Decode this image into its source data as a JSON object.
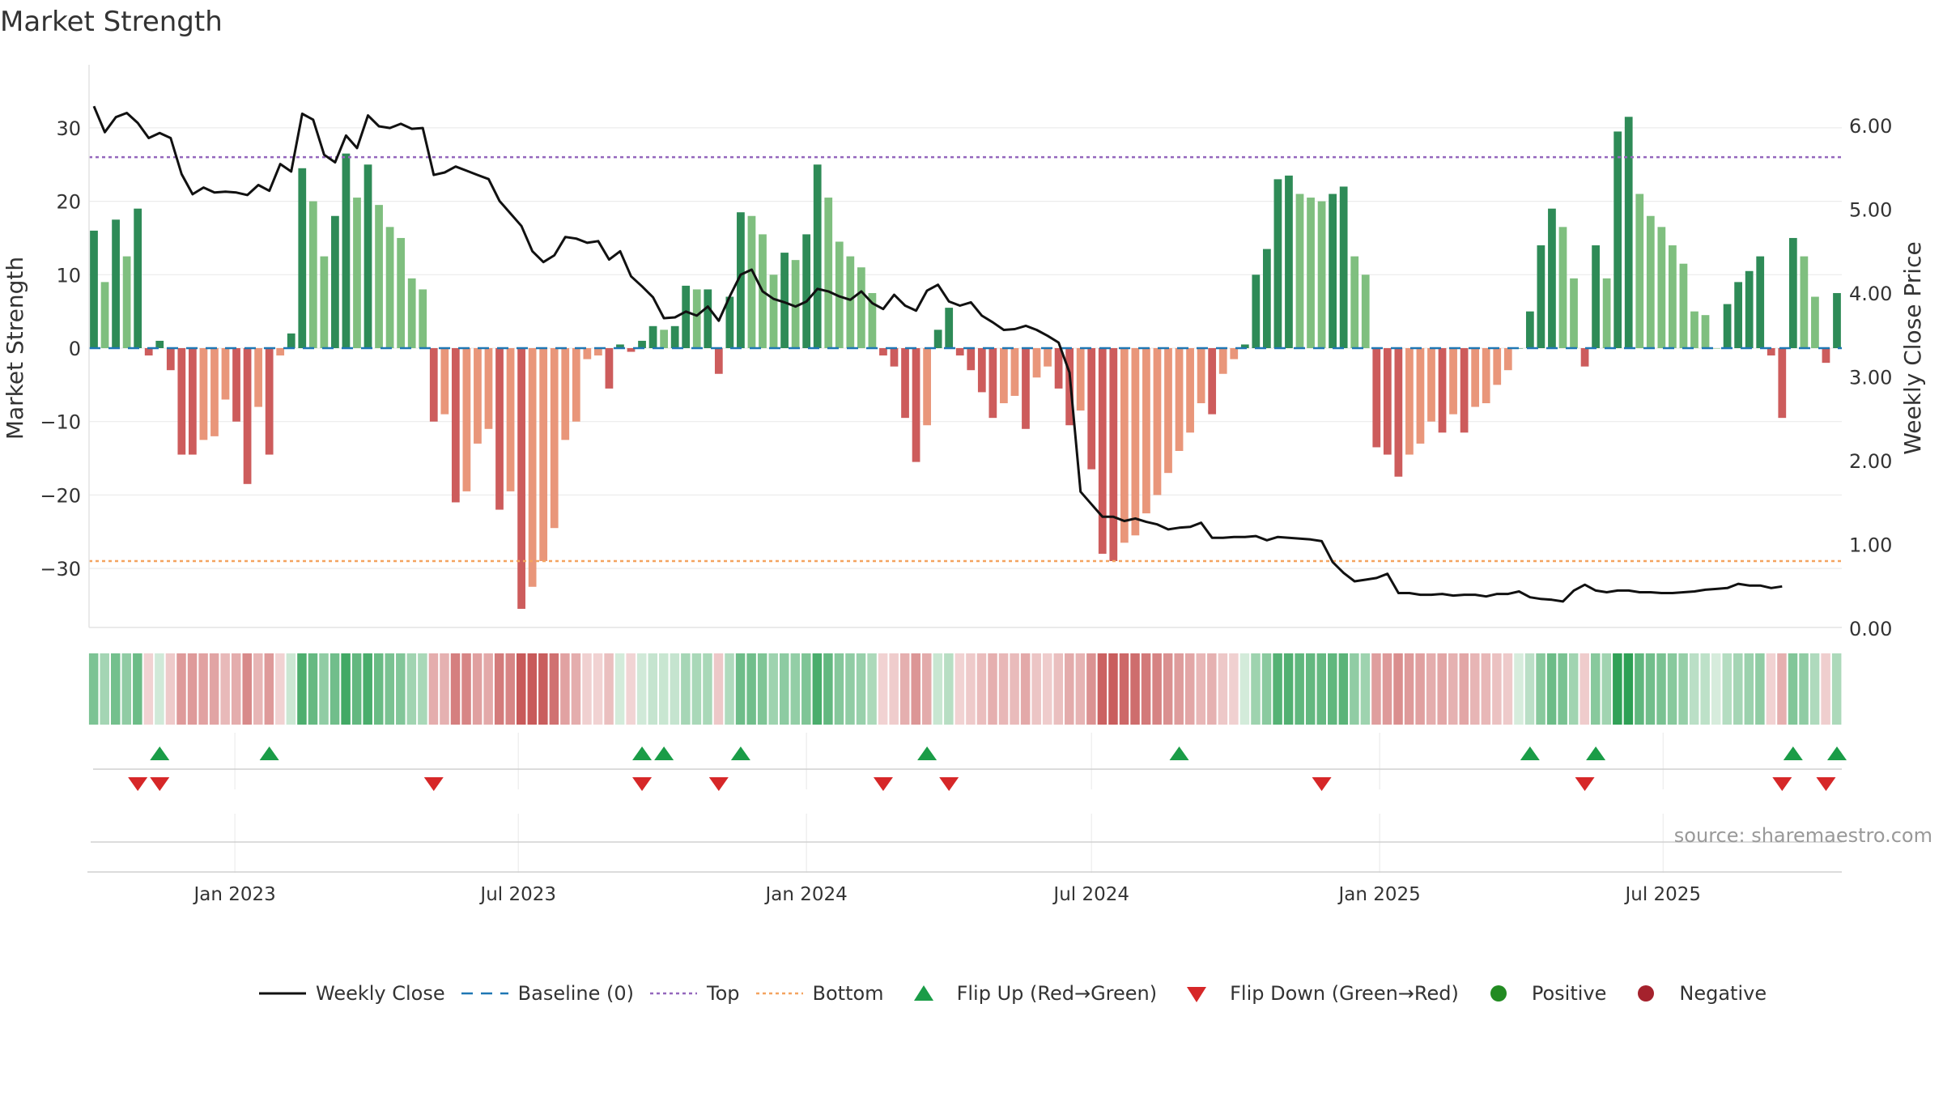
{
  "chart_data": {
    "type": "bar",
    "title": "Market Strength",
    "ylabel_left": "Market Strength",
    "ylabel_right": "Weekly Close Price",
    "ylim_left": [
      -38,
      38
    ],
    "ylim_right": [
      0,
      6.4
    ],
    "yticks_left": [
      "30",
      "20",
      "10",
      "0",
      "−10",
      "−20",
      "−30"
    ],
    "yticks_right": [
      "6.00",
      "5.00",
      "4.00",
      "3.00",
      "2.00",
      "1.00",
      "0.00"
    ],
    "top_line": 26,
    "bottom_line": -29,
    "x_start": "2022-10-03",
    "x_end": "2025-10-20",
    "x_ticks": [
      "Jan 2023",
      "Jul 2023",
      "Jan 2024",
      "Jul 2024",
      "Jan 2025",
      "Jul 2025"
    ],
    "x_tick_dates": [
      "2023-01-01",
      "2023-07-01",
      "2024-01-01",
      "2024-07-01",
      "2025-01-01",
      "2025-07-01"
    ],
    "strength": [
      16,
      9,
      17.5,
      12.5,
      19,
      -1,
      1,
      -3,
      -14.5,
      -14.5,
      -12.5,
      -12,
      -7,
      -10,
      -18.5,
      -8,
      -14.5,
      -1,
      2,
      24.5,
      20,
      12.5,
      18,
      26.5,
      20.5,
      25,
      19.5,
      16.5,
      15,
      9.5,
      8,
      -10,
      -9,
      -21,
      -19.5,
      -13,
      -11,
      -22,
      -19.5,
      -35.5,
      -32.5,
      -29,
      -24.5,
      -12.5,
      -10,
      -1.5,
      -1,
      -5.5,
      0.5,
      -0.5,
      1,
      3,
      2.5,
      3,
      8.5,
      8,
      8,
      -3.5,
      7,
      18.5,
      18,
      15.5,
      10,
      13,
      12,
      15.5,
      25,
      20.5,
      14.5,
      12.5,
      11,
      7.5,
      -1,
      -2.5,
      -9.5,
      -15.5,
      -10.5,
      2.5,
      5.5,
      -1,
      -3,
      -6,
      -9.5,
      -7.5,
      -6.5,
      -11,
      -4,
      -2.5,
      -5.5,
      -10.5,
      -8.5,
      -16.5,
      -28,
      -29,
      -26.5,
      -25.5,
      -22.5,
      -20,
      -17,
      -14,
      -11.5,
      -7.5,
      -9,
      -3.5,
      -1.5,
      0.5,
      10,
      13.5,
      23,
      23.5,
      21,
      20.5,
      20,
      21,
      22,
      12.5,
      10,
      -13.5,
      -14.5,
      -17.5,
      -14.5,
      -13,
      -10,
      -11.5,
      -9,
      -11.5,
      -8,
      -7.5,
      -5,
      -3,
      0,
      5,
      14,
      19,
      16.5,
      9.5,
      -2.5,
      14,
      9.5,
      29.5,
      31.5,
      21,
      18,
      16.5,
      14,
      11.5,
      5,
      4.5,
      0,
      6,
      9,
      10.5,
      12.5,
      -1,
      -9.5,
      15,
      12.5,
      7,
      -2,
      7.5
    ],
    "close": [
      6.23,
      5.92,
      6.1,
      6.15,
      6.03,
      5.85,
      5.91,
      5.85,
      5.42,
      5.18,
      5.26,
      5.2,
      5.21,
      5.2,
      5.17,
      5.29,
      5.22,
      5.54,
      5.45,
      6.14,
      6.07,
      5.65,
      5.56,
      5.88,
      5.73,
      6.12,
      5.99,
      5.97,
      6.02,
      5.96,
      5.97,
      5.41,
      5.44,
      5.51,
      5.46,
      5.41,
      5.36,
      5.1,
      4.95,
      4.8,
      4.5,
      4.37,
      4.45,
      4.67,
      4.65,
      4.6,
      4.62,
      4.4,
      4.5,
      4.2,
      4.08,
      3.95,
      3.7,
      3.71,
      3.78,
      3.73,
      3.84,
      3.67,
      3.96,
      4.22,
      4.28,
      4.02,
      3.93,
      3.89,
      3.84,
      3.9,
      4.05,
      4.02,
      3.96,
      3.92,
      4.02,
      3.88,
      3.81,
      3.98,
      3.85,
      3.79,
      4.03,
      4.1,
      3.9,
      3.85,
      3.89,
      3.73,
      3.65,
      3.56,
      3.57,
      3.61,
      3.56,
      3.49,
      3.41,
      3.05,
      1.63,
      1.48,
      1.33,
      1.33,
      1.28,
      1.31,
      1.27,
      1.24,
      1.18,
      1.2,
      1.21,
      1.26,
      1.08,
      1.08,
      1.09,
      1.09,
      1.1,
      1.05,
      1.09,
      1.08,
      1.07,
      1.06,
      1.04,
      0.79,
      0.66,
      0.56,
      0.58,
      0.6,
      0.65,
      0.42,
      0.42,
      0.4,
      0.4,
      0.41,
      0.39,
      0.4,
      0.4,
      0.38,
      0.41,
      0.41,
      0.44,
      0.37,
      0.35,
      0.34,
      0.32,
      0.45,
      0.52,
      0.45,
      0.43,
      0.45,
      0.45,
      0.43,
      0.43,
      0.42,
      0.42,
      0.43,
      0.44,
      0.46,
      0.47,
      0.48,
      0.53,
      0.51,
      0.51,
      0.48,
      0.5
    ],
    "flip_up_dates": [
      "2022-11-14",
      "2023-01-23",
      "2023-09-18",
      "2023-10-02",
      "2023-11-20",
      "2024-03-18",
      "2024-08-26",
      "2025-04-07",
      "2025-05-19",
      "2025-09-22",
      "2025-10-20"
    ],
    "flip_down_dates": [
      "2022-10-31",
      "2022-11-14",
      "2023-05-08",
      "2023-09-18",
      "2023-11-06",
      "2024-02-19",
      "2024-04-01",
      "2024-11-25",
      "2025-05-12",
      "2025-09-15",
      "2025-10-13"
    ],
    "series": [
      {
        "name": "Weekly Close",
        "color": "#111111"
      },
      {
        "name": "Baseline (0)",
        "color": "#1f77b4"
      },
      {
        "name": "Top",
        "color": "#9467bd"
      },
      {
        "name": "Bottom",
        "color": "#f4a460"
      },
      {
        "name": "Flip Up (Red→Green)",
        "color": "#1a9c47"
      },
      {
        "name": "Flip Down (Green→Red)",
        "color": "#d62728"
      },
      {
        "name": "Positive",
        "color": "#228b22"
      },
      {
        "name": "Negative",
        "color": "#a5222d"
      }
    ],
    "colors": {
      "strong_positive": "#2e8b57",
      "weak_positive": "#7fbf7f",
      "strong_negative": "#cd5c5c",
      "weak_negative": "#e9967a"
    },
    "source": "source: sharemaestro.com"
  }
}
